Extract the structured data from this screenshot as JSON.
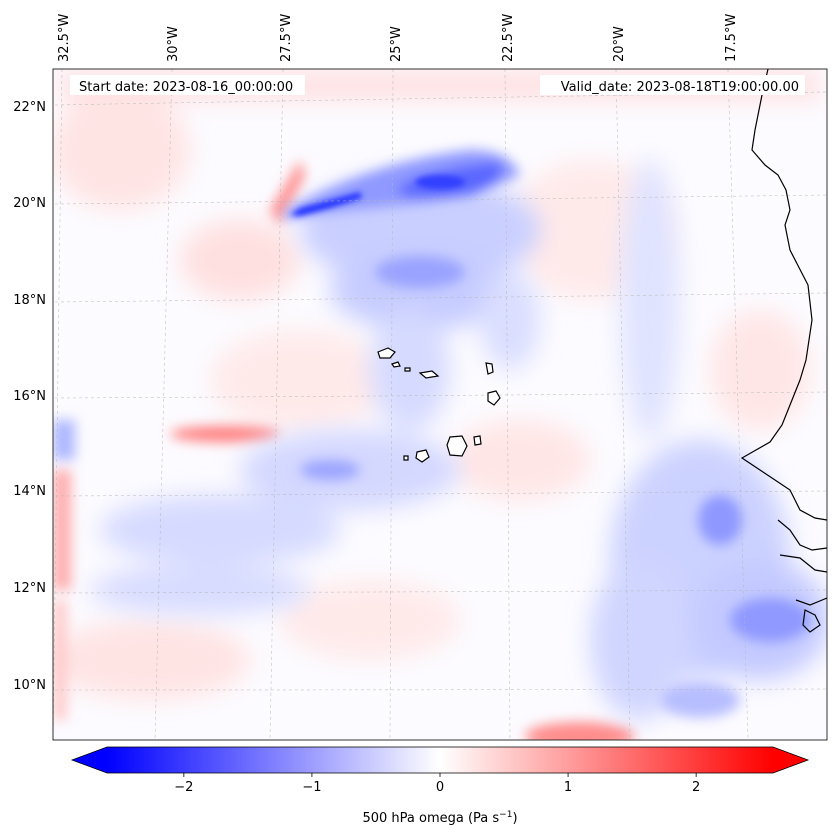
{
  "header": {
    "start_date": "Start date: 2023-08-16_00:00:00",
    "valid_date": "Valid_date: 2023-08-18T19:00:00.00"
  },
  "map": {
    "projection": "lambert-conic",
    "gridlines": true,
    "longitude_labels": [
      "32.5°W",
      "30°W",
      "27.5°W",
      "25°W",
      "22.5°W",
      "20°W",
      "17.5°W"
    ],
    "latitude_labels": [
      "22°N",
      "20°N",
      "18°N",
      "16°N",
      "14°N",
      "12°N",
      "10°N"
    ],
    "field": "500 hPa omega",
    "features": [
      "west-african-coastline",
      "cape-verde-islands"
    ]
  },
  "colorbar": {
    "label_main": "500 hPa omega (Pa s",
    "label_sup": "−1",
    "label_end": ")",
    "ticks": [
      "−2",
      "−1",
      "0",
      "1",
      "2"
    ],
    "tick_values": [
      -2,
      -1,
      0,
      1,
      2
    ],
    "range": [
      -2.6,
      2.6
    ],
    "colormap": "bwr",
    "color_min": "#0000ff",
    "color_mid": "#ffffff",
    "color_max": "#ff0000",
    "extend": "both"
  }
}
